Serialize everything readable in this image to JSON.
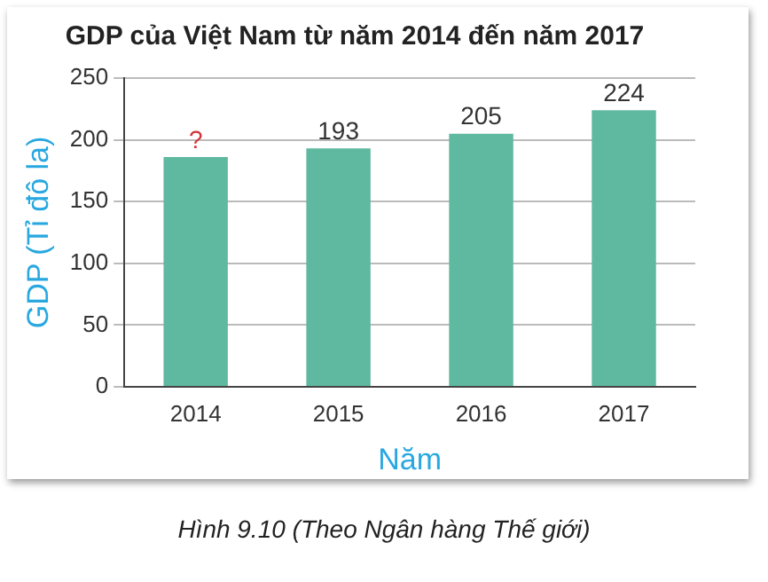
{
  "chart_data": {
    "type": "bar",
    "title": "GDP của Việt Nam từ năm 2014 đến năm 2017",
    "xlabel": "Năm",
    "ylabel": "GDP (Tỉ đô la)",
    "categories": [
      "2014",
      "2015",
      "2016",
      "2017"
    ],
    "values": [
      186,
      193,
      205,
      224
    ],
    "value_labels": [
      "?",
      "193",
      "205",
      "224"
    ],
    "color": "#5fb8a0",
    "ylim": [
      0,
      250
    ],
    "yticks": [
      0,
      50,
      100,
      150,
      200,
      250
    ],
    "grid": "y",
    "annotations": [
      "Hình 9.10 (Theo Ngân hàng Thế giới)"
    ]
  }
}
